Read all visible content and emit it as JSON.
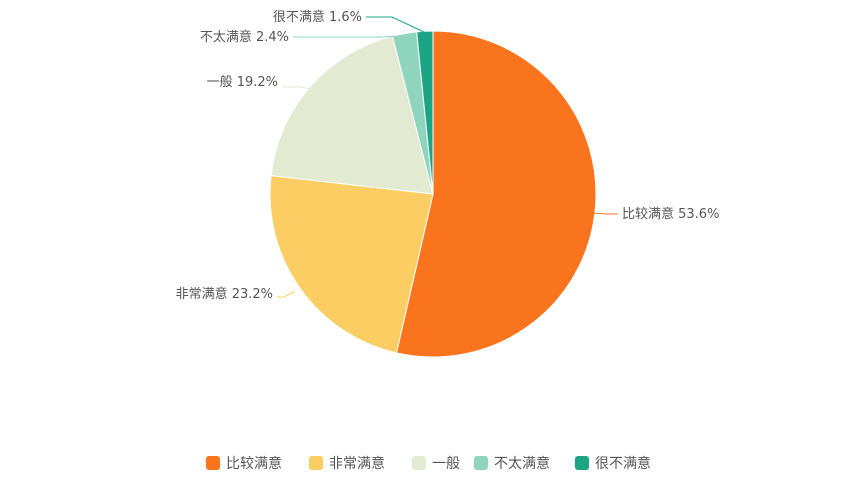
{
  "chart_data": {
    "type": "pie",
    "categories": [
      "比较满意",
      "非常满意",
      "一般",
      "不太满意",
      "很不满意"
    ],
    "values": [
      53.6,
      23.2,
      19.2,
      2.4,
      1.6
    ],
    "unit": "%",
    "colors": [
      "#f9741c",
      "#fbcd62",
      "#e2ebd2",
      "#8fd4bd",
      "#1ba585"
    ],
    "data_labels": [
      "比较满意 53.6%",
      "非常满意 23.2%",
      "一般 19.2%",
      "不太满意 2.4%",
      "很不满意 1.6%"
    ],
    "legend": {
      "position": "bottom",
      "entries": [
        "比较满意",
        "非常满意",
        "一般",
        "不太满意",
        "很不满意"
      ]
    }
  }
}
